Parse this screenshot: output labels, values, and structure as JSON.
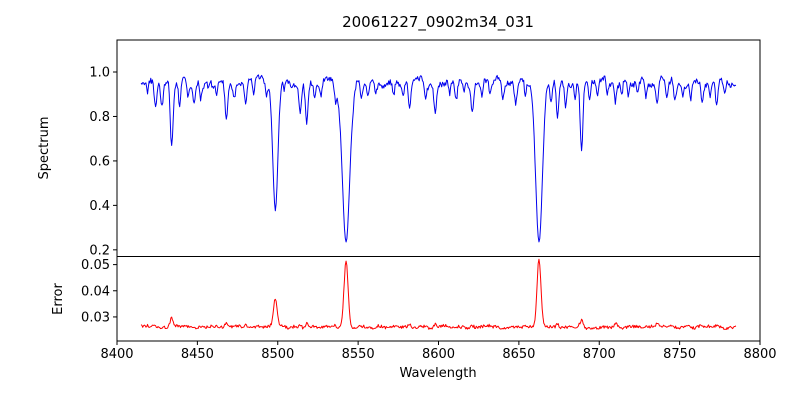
{
  "title": "20061227_0902m34_031",
  "axes": {
    "xlabel": "Wavelength",
    "spectrum_ylabel": "Spectrum",
    "error_ylabel": "Error"
  },
  "chart_data": [
    {
      "type": "line",
      "series_name": "spectrum",
      "title": "20061227_0902m34_031",
      "xlabel": "Wavelength",
      "ylabel": "Spectrum",
      "color": "#0000ee",
      "xlim": [
        8400,
        8800
      ],
      "ylim": [
        0.17,
        1.144
      ],
      "x_start": 8415,
      "x_end": 8785,
      "x_step": 0.5,
      "xticks": [
        8400,
        8450,
        8500,
        8550,
        8600,
        8650,
        8700,
        8750,
        8800
      ],
      "xtick_labels": [
        "8400",
        "8450",
        "8500",
        "8550",
        "8600",
        "8650",
        "8700",
        "8750",
        "8800"
      ],
      "yticks": [
        0.2,
        0.4,
        0.6,
        0.8,
        1.0
      ],
      "ytick_labels": [
        "0.2",
        "0.4",
        "0.6",
        "0.8",
        "1.0"
      ],
      "continuum": 0.955,
      "noise_smooth": 0.022,
      "noise_fine": 0.013,
      "absorption_lines": [
        {
          "center": 8419,
          "depth": 0.05,
          "sigma": 0.6
        },
        {
          "center": 8424,
          "depth": 0.13,
          "sigma": 0.8
        },
        {
          "center": 8428,
          "depth": 0.1,
          "sigma": 0.7
        },
        {
          "center": 8434,
          "depth": 0.3,
          "sigma": 0.9
        },
        {
          "center": 8439,
          "depth": 0.12,
          "sigma": 0.7
        },
        {
          "center": 8444,
          "depth": 0.06,
          "sigma": 0.6
        },
        {
          "center": 8448,
          "depth": 0.09,
          "sigma": 0.7
        },
        {
          "center": 8452,
          "depth": 0.07,
          "sigma": 0.6
        },
        {
          "center": 8457,
          "depth": 0.05,
          "sigma": 0.6
        },
        {
          "center": 8462,
          "depth": 0.06,
          "sigma": 0.6
        },
        {
          "center": 8468,
          "depth": 0.16,
          "sigma": 0.8
        },
        {
          "center": 8473,
          "depth": 0.06,
          "sigma": 0.6
        },
        {
          "center": 8480,
          "depth": 0.1,
          "sigma": 0.7
        },
        {
          "center": 8485,
          "depth": 0.06,
          "sigma": 0.6
        },
        {
          "center": 8493,
          "depth": 0.07,
          "sigma": 0.6
        },
        {
          "center": 8498.5,
          "depth": 0.575,
          "sigma": 1.6
        },
        {
          "center": 8504,
          "depth": 0.06,
          "sigma": 0.6
        },
        {
          "center": 8514,
          "depth": 0.16,
          "sigma": 0.8
        },
        {
          "center": 8518,
          "depth": 0.18,
          "sigma": 0.8
        },
        {
          "center": 8523,
          "depth": 0.07,
          "sigma": 0.6
        },
        {
          "center": 8527,
          "depth": 0.06,
          "sigma": 0.6
        },
        {
          "center": 8536,
          "depth": 0.07,
          "sigma": 0.6
        },
        {
          "center": 8542.5,
          "depth": 0.72,
          "sigma": 2.3
        },
        {
          "center": 8552,
          "depth": 0.07,
          "sigma": 0.6
        },
        {
          "center": 8556,
          "depth": 0.05,
          "sigma": 0.6
        },
        {
          "center": 8561,
          "depth": 0.05,
          "sigma": 0.6
        },
        {
          "center": 8572,
          "depth": 0.06,
          "sigma": 0.6
        },
        {
          "center": 8578,
          "depth": 0.05,
          "sigma": 0.6
        },
        {
          "center": 8582,
          "depth": 0.11,
          "sigma": 0.8
        },
        {
          "center": 8592,
          "depth": 0.06,
          "sigma": 0.6
        },
        {
          "center": 8598,
          "depth": 0.13,
          "sigma": 0.8
        },
        {
          "center": 8607,
          "depth": 0.06,
          "sigma": 0.6
        },
        {
          "center": 8611,
          "depth": 0.08,
          "sigma": 0.7
        },
        {
          "center": 8616,
          "depth": 0.06,
          "sigma": 0.6
        },
        {
          "center": 8621,
          "depth": 0.12,
          "sigma": 0.8
        },
        {
          "center": 8627,
          "depth": 0.06,
          "sigma": 0.6
        },
        {
          "center": 8632,
          "depth": 0.07,
          "sigma": 0.6
        },
        {
          "center": 8640,
          "depth": 0.06,
          "sigma": 0.6
        },
        {
          "center": 8648,
          "depth": 0.1,
          "sigma": 0.7
        },
        {
          "center": 8654,
          "depth": 0.06,
          "sigma": 0.6
        },
        {
          "center": 8662.5,
          "depth": 0.72,
          "sigma": 2.1
        },
        {
          "center": 8670,
          "depth": 0.07,
          "sigma": 0.6
        },
        {
          "center": 8674,
          "depth": 0.17,
          "sigma": 0.8
        },
        {
          "center": 8679,
          "depth": 0.12,
          "sigma": 0.7
        },
        {
          "center": 8685,
          "depth": 0.07,
          "sigma": 0.6
        },
        {
          "center": 8689,
          "depth": 0.31,
          "sigma": 0.9
        },
        {
          "center": 8694,
          "depth": 0.06,
          "sigma": 0.6
        },
        {
          "center": 8699,
          "depth": 0.07,
          "sigma": 0.6
        },
        {
          "center": 8705,
          "depth": 0.05,
          "sigma": 0.6
        },
        {
          "center": 8710,
          "depth": 0.09,
          "sigma": 0.7
        },
        {
          "center": 8714,
          "depth": 0.06,
          "sigma": 0.6
        },
        {
          "center": 8718,
          "depth": 0.07,
          "sigma": 0.6
        },
        {
          "center": 8724,
          "depth": 0.05,
          "sigma": 0.6
        },
        {
          "center": 8729,
          "depth": 0.06,
          "sigma": 0.6
        },
        {
          "center": 8736,
          "depth": 0.09,
          "sigma": 0.7
        },
        {
          "center": 8742,
          "depth": 0.06,
          "sigma": 0.6
        },
        {
          "center": 8747,
          "depth": 0.08,
          "sigma": 0.7
        },
        {
          "center": 8752,
          "depth": 0.05,
          "sigma": 0.6
        },
        {
          "center": 8757,
          "depth": 0.07,
          "sigma": 0.6
        },
        {
          "center": 8764,
          "depth": 0.09,
          "sigma": 0.7
        },
        {
          "center": 8769,
          "depth": 0.06,
          "sigma": 0.6
        },
        {
          "center": 8773,
          "depth": 0.11,
          "sigma": 0.7
        },
        {
          "center": 8778,
          "depth": 0.07,
          "sigma": 0.6
        }
      ]
    },
    {
      "type": "line",
      "series_name": "error",
      "ylabel": "Error",
      "color": "#ff0000",
      "xlim": [
        8400,
        8800
      ],
      "ylim": [
        0.0208,
        0.0531
      ],
      "yticks": [
        0.03,
        0.04,
        0.05
      ],
      "ytick_labels": [
        "0.03",
        "0.04",
        "0.05"
      ],
      "baseline": 0.0262,
      "noise_smooth": 0.0005,
      "noise_fine": 0.0006,
      "peaks": [
        {
          "center": 8419,
          "height": 0.0008,
          "sigma": 0.7
        },
        {
          "center": 8434,
          "height": 0.003,
          "sigma": 0.9
        },
        {
          "center": 8468,
          "height": 0.0012,
          "sigma": 0.8
        },
        {
          "center": 8480,
          "height": 0.0008,
          "sigma": 0.7
        },
        {
          "center": 8498.5,
          "height": 0.0108,
          "sigma": 1.2
        },
        {
          "center": 8514,
          "height": 0.001,
          "sigma": 0.8
        },
        {
          "center": 8518,
          "height": 0.0014,
          "sigma": 0.8
        },
        {
          "center": 8542.5,
          "height": 0.0253,
          "sigma": 1.3
        },
        {
          "center": 8582,
          "height": 0.001,
          "sigma": 0.8
        },
        {
          "center": 8598,
          "height": 0.0012,
          "sigma": 0.8
        },
        {
          "center": 8621,
          "height": 0.0008,
          "sigma": 0.7
        },
        {
          "center": 8662.5,
          "height": 0.0258,
          "sigma": 1.2
        },
        {
          "center": 8674,
          "height": 0.0016,
          "sigma": 0.8
        },
        {
          "center": 8689,
          "height": 0.0028,
          "sigma": 0.9
        },
        {
          "center": 8710,
          "height": 0.0008,
          "sigma": 0.7
        },
        {
          "center": 8736,
          "height": 0.0008,
          "sigma": 0.7
        },
        {
          "center": 8773,
          "height": 0.001,
          "sigma": 0.7
        }
      ]
    }
  ]
}
